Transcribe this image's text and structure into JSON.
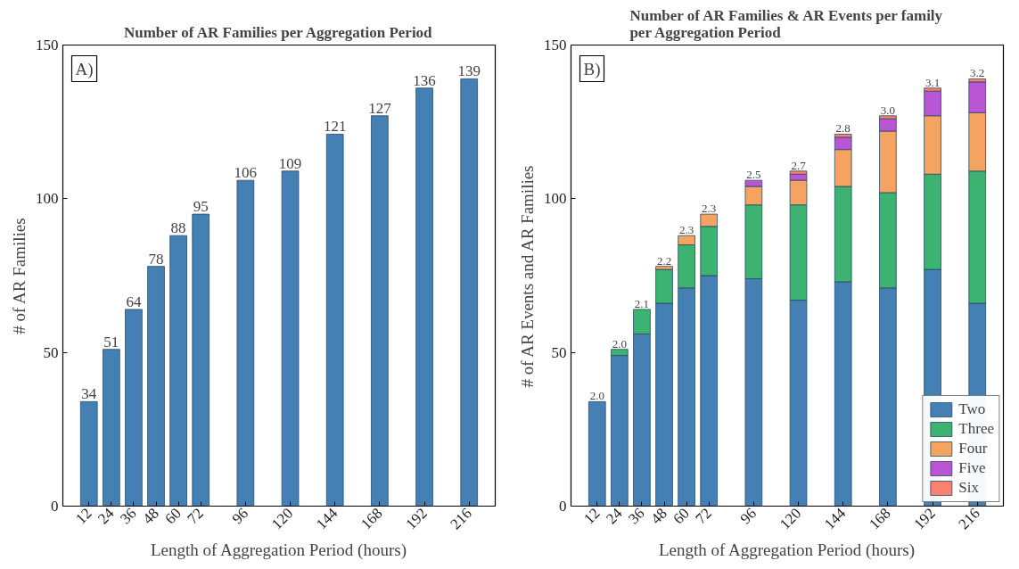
{
  "chart_data": [
    {
      "type": "bar",
      "title": "Number of AR Families per Aggregation Period",
      "xlabel": "Length of Aggregation Period (hours)",
      "ylabel": "# of AR Families",
      "annotations": [
        "A)"
      ],
      "x": [
        12,
        24,
        36,
        48,
        60,
        72,
        96,
        120,
        144,
        168,
        192,
        216
      ],
      "series": [
        {
          "color": "#4480b3",
          "values": [
            34,
            51,
            64,
            78,
            88,
            95,
            106,
            109,
            121,
            127,
            136,
            139
          ]
        }
      ],
      "data_labels": true,
      "xlim": [
        -2,
        230
      ],
      "xticks": [
        12,
        24,
        36,
        48,
        60,
        72,
        96,
        120,
        144,
        168,
        192,
        216
      ],
      "ylim": [
        0,
        150
      ],
      "yticks": [
        0,
        50,
        100,
        150
      ],
      "grid": false,
      "legend": false
    },
    {
      "type": "bar",
      "title": "Number of AR Families & AR Events per family\nper Aggregation Period",
      "xlabel": "Length of Aggregation Period (hours)",
      "ylabel": "# of AR Events and AR Families",
      "x": [
        12,
        24,
        36,
        48,
        60,
        72,
        96,
        120,
        144,
        168,
        192,
        216
      ],
      "stacked": true,
      "series": [
        {
          "name": "Two",
          "color": "#4480b3",
          "values": [
            34,
            49,
            56,
            66,
            71,
            75,
            74,
            67,
            73,
            71,
            77,
            66
          ]
        },
        {
          "name": "Three",
          "color": "#3cb371",
          "values": [
            null,
            2,
            8,
            11,
            14,
            16,
            24,
            31,
            31,
            31,
            31,
            43
          ]
        },
        {
          "name": "Four",
          "color": "#f4a460",
          "values": [
            null,
            null,
            null,
            1,
            3,
            4,
            6,
            8,
            12,
            20,
            19,
            19
          ]
        },
        {
          "name": "Five",
          "color": "#ba55d3",
          "values": [
            null,
            null,
            null,
            null,
            null,
            null,
            2,
            2,
            4,
            4,
            8,
            10
          ]
        },
        {
          "name": "Six",
          "color": "#fa8072",
          "values": [
            null,
            null,
            null,
            null,
            null,
            null,
            null,
            1,
            1,
            1,
            1,
            1
          ]
        }
      ],
      "annotations": [
        "B)",
        {
          "text": "2.0",
          "x": 12,
          "y": 34
        },
        {
          "text": "2.0",
          "x": 24,
          "y": 51
        },
        {
          "text": "2.1",
          "x": 36,
          "y": 64
        },
        {
          "text": "2.2",
          "x": 48,
          "y": 78
        },
        {
          "text": "2.3",
          "x": 60,
          "y": 88
        },
        {
          "text": "2.3",
          "x": 72,
          "y": 95
        },
        {
          "text": "2.5",
          "x": 96,
          "y": 106
        },
        {
          "text": "2.7",
          "x": 120,
          "y": 109
        },
        {
          "text": "2.8",
          "x": 144,
          "y": 121
        },
        {
          "text": "3.0",
          "x": 168,
          "y": 127
        },
        {
          "text": "3.1",
          "x": 192,
          "y": 136
        },
        {
          "text": "3.2",
          "x": 216,
          "y": 139
        }
      ],
      "xlim": [
        -2,
        230
      ],
      "xticks": [
        12,
        24,
        36,
        48,
        60,
        72,
        96,
        120,
        144,
        168,
        192,
        216
      ],
      "ylim": [
        0,
        150
      ],
      "yticks": [
        0,
        50,
        100,
        150
      ],
      "grid": false,
      "legend": "bottom right"
    }
  ]
}
